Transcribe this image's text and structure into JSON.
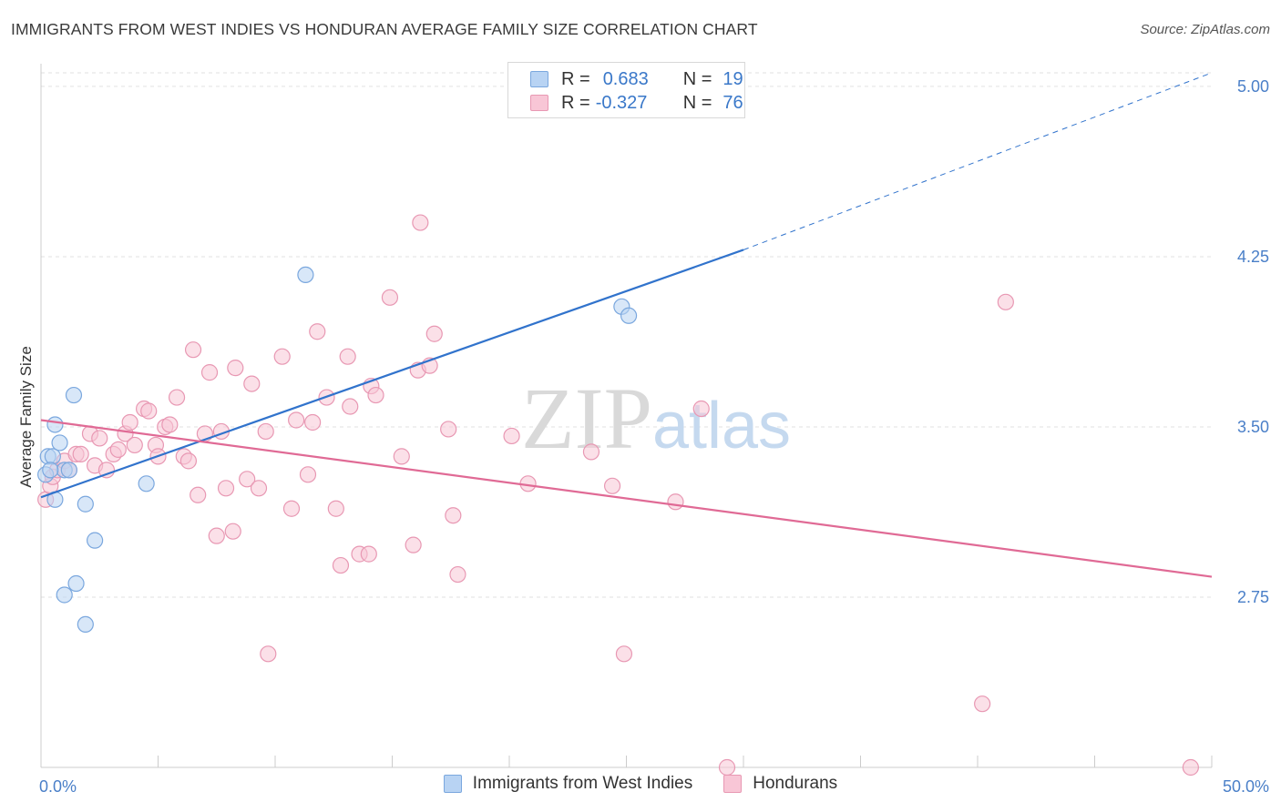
{
  "colors": {
    "blue_fill": "#b8d3f3",
    "blue_stroke": "#7aa7de",
    "blue_line": "#3173cc",
    "pink_fill": "#f8c6d6",
    "pink_stroke": "#e898b3",
    "pink_line": "#e06a95",
    "tick_text": "#4a7fc8"
  },
  "chart_data": {
    "type": "scatter",
    "title": "IMMIGRANTS FROM WEST INDIES VS HONDURAN AVERAGE FAMILY SIZE CORRELATION CHART",
    "source": "Source: ZipAtlas.com",
    "watermark": "ZIPatlas",
    "xlabel": "",
    "ylabel": "Average Family Size",
    "xlim": [
      0,
      50
    ],
    "ylim": [
      2.0,
      5.1
    ],
    "x_tick_labels": [
      "0.0%",
      "50.0%"
    ],
    "y_ticks": [
      2.75,
      3.5,
      4.25,
      5.0
    ],
    "y_tick_labels": [
      "2.75",
      "3.50",
      "4.25",
      "5.00"
    ],
    "legend_stats": [
      {
        "r_label": "R =",
        "r_value": "0.683",
        "n_label": "N =",
        "n_value": "19"
      },
      {
        "r_label": "R =",
        "r_value": "-0.327",
        "n_label": "N =",
        "n_value": "76"
      }
    ],
    "series": [
      {
        "name": "Immigrants from West Indies",
        "color": "blue",
        "trend": {
          "x0": 0,
          "y0": 3.19,
          "x1": 30,
          "y1": 4.28,
          "dash_to_x": 50,
          "dash_to_y": 5.06
        },
        "points": [
          [
            0.2,
            3.29
          ],
          [
            0.3,
            3.37
          ],
          [
            0.5,
            3.37
          ],
          [
            0.6,
            3.18
          ],
          [
            0.6,
            3.51
          ],
          [
            0.8,
            3.43
          ],
          [
            1.0,
            3.31
          ],
          [
            1.2,
            3.31
          ],
          [
            1.4,
            3.64
          ],
          [
            1.5,
            2.81
          ],
          [
            1.0,
            2.76
          ],
          [
            1.9,
            3.16
          ],
          [
            1.9,
            2.63
          ],
          [
            2.3,
            3.0
          ],
          [
            4.5,
            3.25
          ],
          [
            11.3,
            4.17
          ],
          [
            24.8,
            4.03
          ],
          [
            25.1,
            3.99
          ],
          [
            0.4,
            3.31
          ]
        ]
      },
      {
        "name": "Hondurans",
        "color": "pink",
        "trend": {
          "x0": 0,
          "y0": 3.53,
          "x1": 50,
          "y1": 2.84
        },
        "points": [
          [
            0.2,
            3.18
          ],
          [
            0.4,
            3.24
          ],
          [
            0.5,
            3.28
          ],
          [
            0.7,
            3.31
          ],
          [
            1.0,
            3.35
          ],
          [
            1.2,
            3.31
          ],
          [
            1.5,
            3.38
          ],
          [
            1.7,
            3.38
          ],
          [
            2.1,
            3.47
          ],
          [
            2.3,
            3.33
          ],
          [
            2.5,
            3.45
          ],
          [
            2.8,
            3.31
          ],
          [
            3.1,
            3.38
          ],
          [
            3.3,
            3.4
          ],
          [
            3.6,
            3.47
          ],
          [
            3.8,
            3.52
          ],
          [
            4.0,
            3.42
          ],
          [
            4.4,
            3.58
          ],
          [
            4.6,
            3.57
          ],
          [
            4.9,
            3.42
          ],
          [
            5.0,
            3.37
          ],
          [
            5.3,
            3.5
          ],
          [
            5.5,
            3.51
          ],
          [
            5.8,
            3.63
          ],
          [
            6.1,
            3.37
          ],
          [
            6.3,
            3.35
          ],
          [
            6.5,
            3.84
          ],
          [
            6.7,
            3.2
          ],
          [
            7.0,
            3.47
          ],
          [
            7.2,
            3.74
          ],
          [
            7.5,
            3.02
          ],
          [
            7.7,
            3.48
          ],
          [
            7.9,
            3.23
          ],
          [
            8.2,
            3.04
          ],
          [
            8.3,
            3.76
          ],
          [
            8.8,
            3.27
          ],
          [
            9.0,
            3.69
          ],
          [
            9.3,
            3.23
          ],
          [
            9.6,
            3.48
          ],
          [
            9.7,
            2.5
          ],
          [
            10.3,
            3.81
          ],
          [
            10.7,
            3.14
          ],
          [
            10.9,
            3.53
          ],
          [
            11.4,
            3.29
          ],
          [
            11.6,
            3.52
          ],
          [
            11.8,
            3.92
          ],
          [
            12.2,
            3.63
          ],
          [
            12.6,
            3.14
          ],
          [
            12.8,
            2.89
          ],
          [
            13.1,
            3.81
          ],
          [
            13.2,
            3.59
          ],
          [
            13.6,
            2.94
          ],
          [
            14.0,
            2.94
          ],
          [
            14.1,
            3.68
          ],
          [
            14.3,
            3.64
          ],
          [
            14.9,
            4.07
          ],
          [
            15.4,
            3.37
          ],
          [
            15.9,
            2.98
          ],
          [
            16.1,
            3.75
          ],
          [
            16.2,
            4.4
          ],
          [
            16.6,
            3.77
          ],
          [
            16.8,
            3.91
          ],
          [
            17.4,
            3.49
          ],
          [
            17.6,
            3.11
          ],
          [
            17.8,
            2.85
          ],
          [
            20.1,
            3.46
          ],
          [
            20.8,
            3.25
          ],
          [
            23.5,
            3.39
          ],
          [
            24.4,
            3.24
          ],
          [
            24.9,
            2.5
          ],
          [
            27.1,
            3.17
          ],
          [
            28.2,
            3.58
          ],
          [
            29.3,
            2.0
          ],
          [
            40.2,
            2.28
          ],
          [
            41.2,
            4.05
          ],
          [
            49.1,
            2.0
          ]
        ]
      }
    ]
  }
}
